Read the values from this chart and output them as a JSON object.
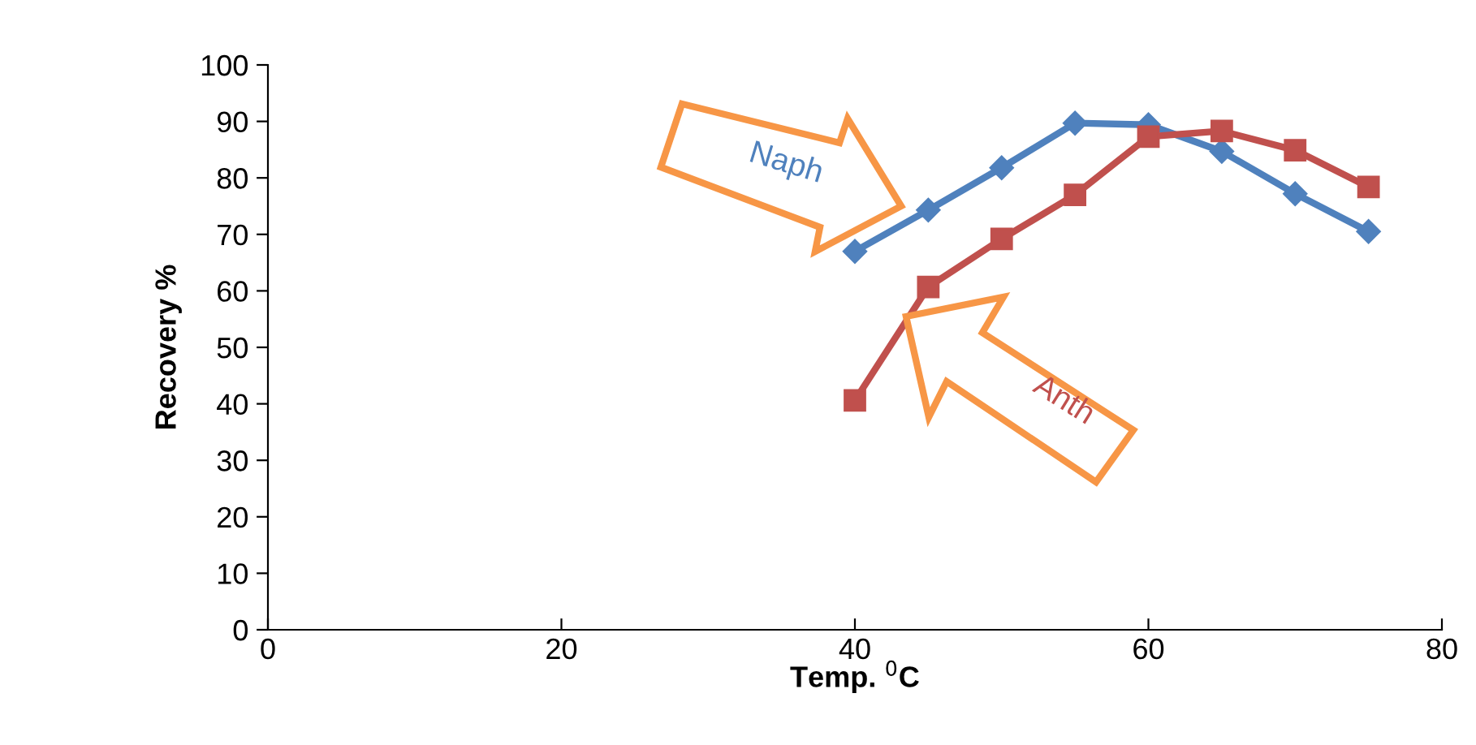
{
  "chart_data": {
    "type": "line",
    "xlabel": "Temp. $^{0}$C",
    "ylabel": "Recovery %",
    "xlim": [
      0,
      80
    ],
    "xticks": [
      0,
      20,
      40,
      60,
      80
    ],
    "ylim": [
      0,
      100
    ],
    "yticks": [
      0,
      10,
      20,
      30,
      40,
      50,
      60,
      70,
      80,
      90,
      100
    ],
    "grid": false,
    "legend": false,
    "series": [
      {
        "name": "Naph",
        "color": "#4f81bd",
        "marker": "diamond",
        "x": [
          40,
          45,
          50,
          55,
          60,
          65,
          70,
          75
        ],
        "values": [
          67,
          74.3,
          81.8,
          89.7,
          89.4,
          84.7,
          77.2,
          70.5
        ]
      },
      {
        "name": "Anth",
        "color": "#c0504d",
        "marker": "square",
        "x": [
          40,
          45,
          50,
          55,
          60,
          65,
          70,
          75
        ],
        "values": [
          40.6,
          60.7,
          69.2,
          77,
          87.3,
          88.3,
          84.9,
          78.4
        ]
      }
    ]
  }
}
